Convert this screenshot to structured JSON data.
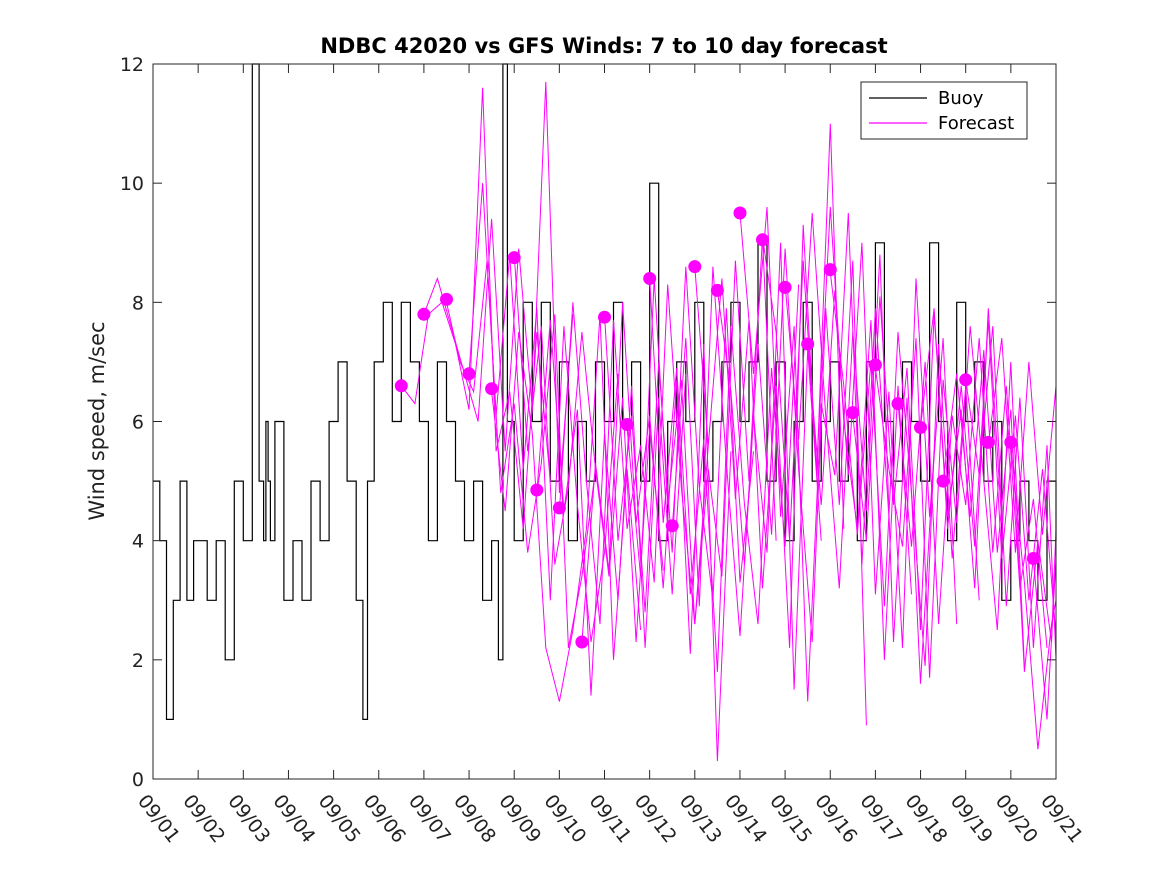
{
  "chart_data": {
    "type": "line",
    "title": "NDBC 42020 vs GFS Winds: 7 to 10 day forecast",
    "xlabel": "",
    "ylabel": "Wind speed, m/sec",
    "xlim": [
      0,
      20
    ],
    "ylim": [
      0,
      12
    ],
    "y_ticks": [
      0,
      2,
      4,
      6,
      8,
      10,
      12
    ],
    "x_tick_labels": [
      "09/01",
      "09/02",
      "09/03",
      "09/04",
      "09/05",
      "09/06",
      "09/07",
      "09/08",
      "09/09",
      "09/10",
      "09/11",
      "09/12",
      "09/13",
      "09/14",
      "09/15",
      "09/16",
      "09/17",
      "09/18",
      "09/19",
      "09/20",
      "09/21"
    ],
    "legend": {
      "position": "top-right",
      "entries": [
        {
          "label": "Buoy",
          "color": "#000000"
        },
        {
          "label": "Forecast",
          "color": "#ff00ff"
        }
      ]
    },
    "colors": {
      "buoy": "#000000",
      "forecast": "#ff00ff"
    },
    "buoy": {
      "name": "Buoy",
      "days": [
        0,
        0.15,
        0.3,
        0.45,
        0.6,
        0.75,
        0.9,
        1.0,
        1.2,
        1.4,
        1.6,
        1.8,
        2.0,
        2.2,
        2.35,
        2.45,
        2.5,
        2.55,
        2.6,
        2.7,
        2.9,
        3.1,
        3.3,
        3.5,
        3.7,
        3.9,
        4.1,
        4.3,
        4.5,
        4.65,
        4.75,
        4.9,
        5.1,
        5.3,
        5.5,
        5.7,
        5.9,
        6.1,
        6.3,
        6.5,
        6.7,
        6.9,
        7.1,
        7.3,
        7.5,
        7.65,
        7.75,
        7.85,
        8.0,
        8.2,
        8.4,
        8.6,
        8.8,
        9.0,
        9.2,
        9.4,
        9.6,
        9.8,
        10.0,
        10.2,
        10.4,
        10.6,
        10.8,
        11.0,
        11.2,
        11.4,
        11.6,
        11.8,
        12.0,
        12.2,
        12.4,
        12.6,
        12.8,
        13.0,
        13.2,
        13.4,
        13.6,
        13.8,
        14.0,
        14.2,
        14.4,
        14.6,
        14.8,
        15.0,
        15.2,
        15.4,
        15.6,
        15.8,
        16.0,
        16.2,
        16.4,
        16.6,
        16.8,
        17.0,
        17.2,
        17.4,
        17.6,
        17.8,
        18.0,
        18.2,
        18.4,
        18.6,
        18.8,
        19.0,
        19.2,
        19.4,
        19.6,
        19.8,
        20.0
      ],
      "values": [
        5,
        4,
        1,
        3,
        5,
        3,
        4,
        4,
        3,
        4,
        2,
        5,
        4,
        12,
        5,
        4,
        6,
        5,
        4,
        6,
        3,
        4,
        3,
        5,
        4,
        6,
        7,
        5,
        3,
        1,
        5,
        7,
        8,
        6,
        8,
        7,
        6,
        4,
        7,
        6,
        5,
        4,
        5,
        3,
        4,
        2,
        12,
        6,
        4,
        8,
        6,
        8,
        5,
        7,
        4,
        6,
        5,
        7,
        6,
        8,
        6,
        7,
        5,
        10,
        4,
        6,
        7,
        6,
        8,
        5,
        6,
        7,
        8,
        6,
        7,
        9,
        5,
        7,
        4,
        6,
        8,
        5,
        6,
        7,
        5,
        6,
        4,
        7,
        9,
        6,
        5,
        7,
        6,
        5,
        9,
        6,
        4,
        8,
        6,
        7,
        5,
        6,
        3,
        4,
        5,
        4,
        3,
        5,
        4
      ]
    },
    "forecast_runs": [
      {
        "days": [
          5.5,
          5.8,
          6.1,
          6.4,
          6.7,
          7.0,
          7.3,
          7.6,
          7.9,
          8.2,
          8.5,
          8.8
        ],
        "values": [
          6.6,
          6.3,
          7.8,
          8.0,
          7.3,
          6.2,
          11.6,
          5.5,
          6.5,
          4.2,
          7.5,
          5.0
        ]
      },
      {
        "days": [
          6.0,
          6.3,
          6.6,
          6.9,
          7.2,
          7.5,
          7.8,
          8.1,
          8.4,
          8.7,
          9.0,
          9.3
        ],
        "values": [
          7.8,
          8.4,
          7.6,
          6.8,
          6.0,
          9.4,
          5.5,
          8.9,
          6.2,
          11.7,
          4.8,
          7.8
        ]
      },
      {
        "days": [
          6.5,
          6.8,
          7.1,
          7.4,
          7.7,
          8.0,
          8.3,
          8.6,
          8.9,
          9.2,
          9.5,
          9.8
        ],
        "values": [
          8.0,
          7.0,
          6.5,
          8.7,
          4.8,
          6.3,
          3.8,
          5.3,
          7.8,
          2.2,
          3.4,
          5.2
        ]
      },
      {
        "days": [
          7.0,
          7.3,
          7.6,
          7.9,
          8.2,
          8.5,
          8.8,
          9.1,
          9.4,
          9.7,
          10.0,
          10.3
        ],
        "values": [
          6.8,
          10.0,
          6.1,
          8.8,
          5.2,
          7.9,
          3.0,
          7.6,
          4.6,
          2.3,
          3.8,
          6.8
        ]
      },
      {
        "days": [
          7.5,
          7.8,
          8.1,
          8.4,
          8.7,
          9.0,
          9.3,
          9.6,
          9.9,
          10.2,
          10.5,
          10.8
        ],
        "values": [
          6.5,
          4.5,
          7.5,
          5.8,
          2.2,
          1.3,
          2.5,
          4.2,
          7.8,
          2.0,
          5.2,
          2.5
        ]
      },
      {
        "days": [
          8.0,
          8.3,
          8.6,
          8.9,
          9.2,
          9.5,
          9.8,
          10.1,
          10.4,
          10.7,
          11.0,
          11.3
        ],
        "values": [
          8.8,
          5.5,
          7.6,
          3.6,
          4.9,
          7.5,
          5.2,
          3.4,
          6.4,
          2.3,
          5.9,
          3.5
        ]
      },
      {
        "days": [
          8.5,
          8.8,
          9.1,
          9.4,
          9.7,
          10.0,
          10.3,
          10.6,
          10.9,
          11.2,
          11.5,
          11.8
        ],
        "values": [
          4.8,
          7.7,
          4.5,
          6.2,
          1.4,
          5.8,
          3.0,
          6.6,
          2.2,
          6.4,
          3.1,
          6.8
        ]
      },
      {
        "days": [
          9.0,
          9.3,
          9.6,
          9.9,
          10.2,
          10.5,
          10.8,
          11.1,
          11.4,
          11.7,
          12.0,
          12.3
        ],
        "values": [
          4.5,
          8.0,
          5.0,
          2.6,
          7.7,
          4.2,
          5.6,
          3.3,
          8.3,
          4.9,
          2.6,
          5.6
        ]
      },
      {
        "days": [
          9.5,
          9.8,
          10.1,
          10.4,
          10.7,
          11.0,
          11.3,
          11.6,
          11.9,
          12.2,
          12.5,
          12.8
        ],
        "values": [
          2.3,
          5.3,
          3.5,
          8.0,
          4.3,
          6.1,
          3.2,
          6.7,
          2.1,
          7.3,
          0.3,
          5.5
        ]
      },
      {
        "days": [
          10.0,
          10.3,
          10.6,
          10.9,
          11.2,
          11.5,
          11.8,
          12.1,
          12.4,
          12.7,
          13.0,
          13.3
        ],
        "values": [
          7.8,
          4.0,
          6.1,
          2.8,
          7.0,
          3.8,
          8.6,
          4.9,
          3.0,
          7.9,
          3.3,
          5.5
        ]
      },
      {
        "days": [
          10.5,
          10.8,
          11.1,
          11.4,
          11.7,
          12.0,
          12.3,
          12.6,
          12.9,
          13.2,
          13.5,
          13.8
        ],
        "values": [
          5.9,
          3.4,
          8.4,
          4.6,
          6.7,
          2.6,
          5.2,
          3.4,
          8.7,
          5.0,
          9.1,
          4.0
        ]
      },
      {
        "days": [
          11.0,
          11.3,
          11.6,
          11.9,
          12.2,
          12.5,
          12.8,
          13.1,
          13.4,
          13.7,
          14.0,
          14.3
        ],
        "values": [
          8.4,
          4.3,
          6.9,
          3.1,
          5.7,
          1.8,
          7.6,
          4.6,
          2.6,
          6.9,
          3.9,
          8.3
        ]
      },
      {
        "days": [
          11.5,
          11.8,
          12.1,
          12.4,
          12.7,
          13.0,
          13.3,
          13.6,
          13.9,
          14.2,
          14.5,
          14.8
        ],
        "values": [
          4.2,
          7.4,
          2.9,
          8.6,
          5.3,
          2.4,
          6.1,
          3.8,
          9.0,
          1.5,
          7.2,
          4.0
        ]
      },
      {
        "days": [
          12.0,
          12.3,
          12.6,
          12.9,
          13.2,
          13.5,
          13.8,
          14.1,
          14.4,
          14.7,
          15.0,
          15.3
        ],
        "values": [
          8.6,
          5.6,
          8.4,
          4.7,
          7.7,
          3.2,
          6.6,
          2.2,
          9.3,
          5.1,
          11.0,
          4.2
        ]
      },
      {
        "days": [
          12.5,
          12.8,
          13.1,
          13.4,
          13.7,
          14.0,
          14.3,
          14.6,
          14.9,
          15.2,
          15.5,
          15.8
        ],
        "values": [
          8.2,
          6.5,
          3.6,
          7.3,
          4.1,
          8.9,
          5.2,
          2.3,
          7.9,
          4.6,
          8.7,
          0.9
        ]
      },
      {
        "days": [
          13.0,
          13.3,
          13.6,
          13.9,
          14.2,
          14.5,
          14.8,
          15.1,
          15.4,
          15.7,
          16.0,
          16.3
        ],
        "values": [
          9.5,
          6.8,
          9.6,
          4.4,
          7.6,
          1.3,
          6.3,
          5.1,
          9.5,
          3.6,
          7.9,
          4.4
        ]
      },
      {
        "days": [
          13.5,
          13.8,
          14.1,
          14.4,
          14.7,
          15.0,
          15.3,
          15.6,
          15.9,
          16.2,
          16.5,
          16.8
        ],
        "values": [
          9.1,
          7.5,
          4.0,
          8.7,
          5.2,
          9.6,
          6.0,
          4.2,
          7.7,
          2.0,
          6.6,
          3.1
        ]
      },
      {
        "days": [
          14.0,
          14.3,
          14.6,
          14.9,
          15.2,
          15.5,
          15.8,
          16.1,
          16.4,
          16.7,
          17.0,
          17.3
        ],
        "values": [
          8.3,
          5.7,
          9.5,
          6.1,
          3.2,
          7.5,
          4.5,
          8.8,
          2.3,
          6.4,
          1.6,
          5.5
        ]
      },
      {
        "days": [
          14.5,
          14.8,
          15.1,
          15.4,
          15.7,
          16.0,
          16.3,
          16.6,
          16.9,
          17.2,
          17.5,
          17.8
        ],
        "values": [
          7.3,
          4.6,
          8.2,
          5.1,
          9.0,
          3.1,
          6.5,
          2.2,
          8.4,
          4.4,
          7.4,
          2.6
        ]
      },
      {
        "days": [
          15.0,
          15.3,
          15.6,
          15.9,
          16.2,
          16.5,
          16.8,
          17.1,
          17.4,
          17.7,
          18.0,
          18.3
        ],
        "values": [
          8.5,
          6.6,
          4.1,
          7.0,
          2.9,
          7.5,
          4.8,
          1.9,
          7.3,
          3.7,
          6.6,
          3.0
        ]
      },
      {
        "days": [
          15.5,
          15.8,
          16.1,
          16.4,
          16.7,
          17.0,
          17.3,
          17.6,
          17.9,
          18.2,
          18.5,
          18.8
        ],
        "values": [
          6.1,
          4.0,
          8.1,
          4.6,
          6.9,
          2.5,
          7.8,
          4.4,
          6.2,
          3.2,
          7.9,
          4.3
        ]
      },
      {
        "days": [
          16.0,
          16.3,
          16.6,
          16.9,
          17.2,
          17.5,
          17.8,
          18.1,
          18.4,
          18.7,
          19.0,
          19.3
        ],
        "values": [
          6.9,
          5.2,
          3.9,
          7.4,
          1.7,
          6.7,
          4.3,
          7.6,
          5.0,
          2.5,
          7.0,
          1.9
        ]
      },
      {
        "days": [
          16.5,
          16.8,
          17.1,
          17.4,
          17.7,
          18.0,
          18.3,
          18.6,
          18.9,
          19.2,
          19.5,
          19.8
        ],
        "values": [
          6.3,
          3.9,
          7.0,
          2.6,
          6.1,
          4.6,
          7.4,
          3.8,
          6.6,
          3.2,
          4.7,
          2.2
        ]
      },
      {
        "days": [
          17.0,
          17.3,
          17.6,
          17.9,
          18.2,
          18.5,
          18.8,
          19.1,
          19.4,
          19.7,
          20.0
        ],
        "values": [
          5.9,
          7.9,
          4.2,
          6.6,
          3.9,
          7.7,
          3.7,
          6.1,
          3.0,
          5.2,
          2.4
        ]
      },
      {
        "days": [
          17.5,
          17.8,
          18.1,
          18.4,
          18.7,
          19.0,
          19.3,
          19.6,
          19.9,
          20.0
        ],
        "values": [
          5.0,
          6.8,
          4.4,
          7.2,
          3.8,
          6.2,
          1.8,
          4.0,
          2.3,
          4.2
        ]
      },
      {
        "days": [
          18.0,
          18.3,
          18.6,
          18.9,
          19.2,
          19.5,
          19.8,
          20.0
        ],
        "values": [
          6.7,
          5.1,
          7.6,
          2.9,
          6.4,
          2.2,
          5.6,
          2.0
        ]
      },
      {
        "days": [
          18.5,
          18.8,
          19.1,
          19.4,
          19.7,
          20.0
        ],
        "values": [
          5.6,
          7.4,
          3.8,
          7.0,
          4.1,
          6.6
        ]
      },
      {
        "days": [
          19.0,
          19.3,
          19.6,
          19.9,
          20.0
        ],
        "values": [
          5.6,
          3.3,
          0.5,
          2.6,
          3.0
        ]
      },
      {
        "days": [
          19.5,
          19.8,
          20.0
        ],
        "values": [
          3.7,
          1.0,
          3.7
        ]
      }
    ],
    "forecast_markers": {
      "days": [
        5.5,
        6.0,
        6.5,
        7.0,
        7.5,
        8.0,
        8.5,
        9.0,
        9.5,
        10.0,
        10.5,
        11.0,
        11.5,
        12.0,
        12.5,
        13.0,
        13.5,
        14.0,
        14.5,
        15.0,
        15.5,
        16.0,
        16.5,
        17.0,
        17.5,
        18.0,
        18.5,
        19.0,
        19.5
      ],
      "values": [
        6.6,
        7.8,
        8.05,
        6.8,
        6.55,
        8.75,
        4.85,
        4.55,
        2.3,
        7.75,
        5.95,
        8.4,
        4.25,
        8.6,
        8.2,
        9.5,
        9.05,
        8.25,
        7.3,
        8.55,
        6.15,
        6.95,
        6.3,
        5.9,
        5.0,
        6.7,
        5.65,
        5.65,
        3.7
      ]
    }
  }
}
